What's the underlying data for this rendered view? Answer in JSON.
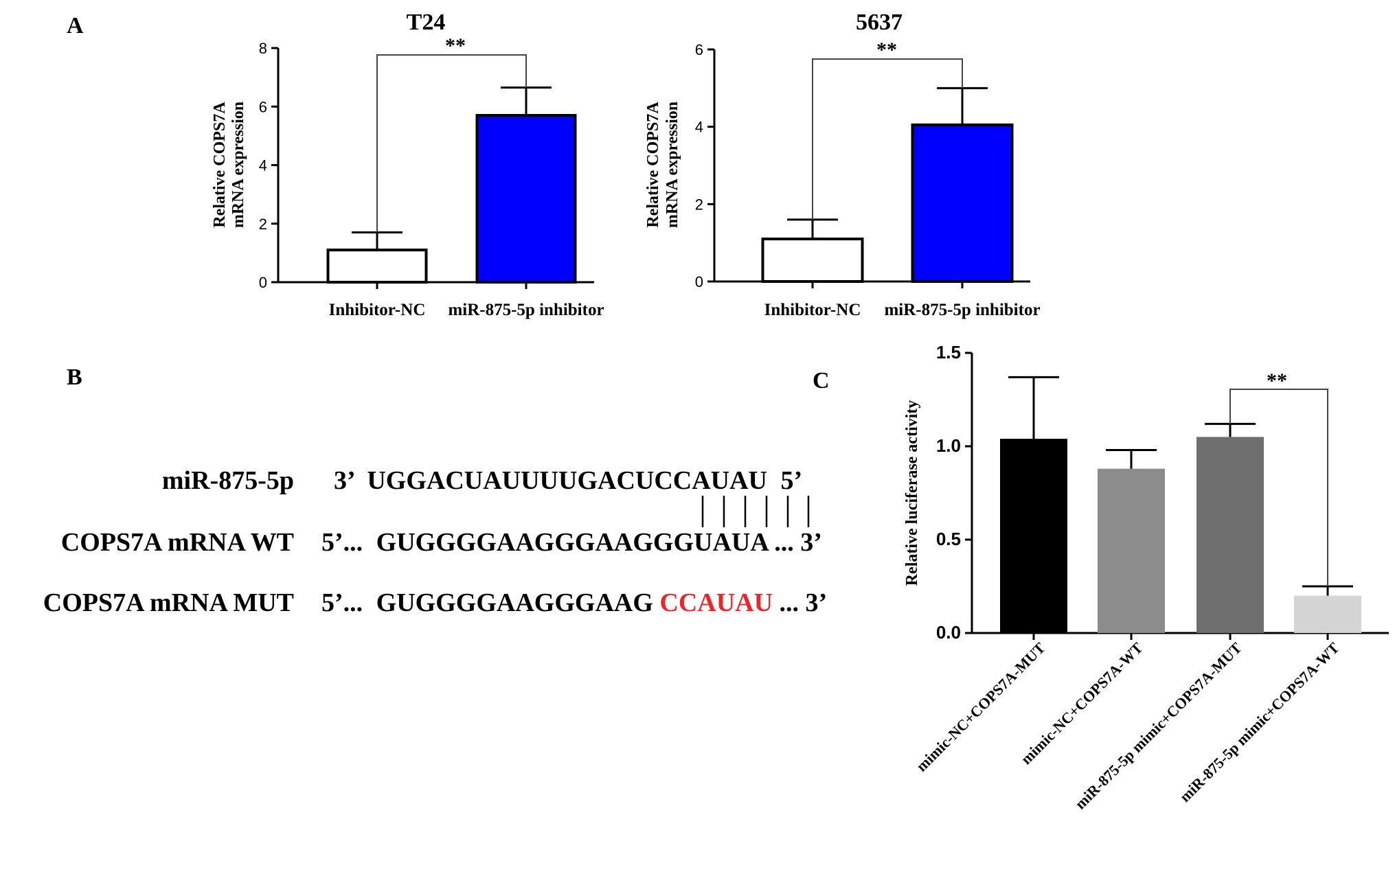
{
  "figure": {
    "panel_letters": [
      "A",
      "B",
      "C"
    ]
  },
  "chart_data": [
    {
      "id": "A1",
      "type": "bar",
      "title": "T24",
      "ylabel_line1": "Relative COPS7A",
      "ylabel_line2": "mRNA expression",
      "categories": [
        "Inhibitor-NC",
        "miR-875-5p inhibitor"
      ],
      "values": [
        1.1,
        5.7
      ],
      "errors": [
        0.6,
        0.95
      ],
      "ylim": [
        0,
        8
      ],
      "yticks": [
        0,
        2,
        4,
        6,
        8
      ],
      "bar_colors": [
        "#ffffff",
        "#0000ff"
      ],
      "significance": "**"
    },
    {
      "id": "A2",
      "type": "bar",
      "title": "5637",
      "ylabel_line1": "Relative COPS7A",
      "ylabel_line2": "mRNA expression",
      "categories": [
        "Inhibitor-NC",
        "miR-875-5p inhibitor"
      ],
      "values": [
        1.1,
        4.05
      ],
      "errors": [
        0.5,
        0.95
      ],
      "ylim": [
        0,
        6
      ],
      "yticks": [
        0,
        2,
        4,
        6
      ],
      "bar_colors": [
        "#ffffff",
        "#0000ff"
      ],
      "significance": "**"
    },
    {
      "id": "C",
      "type": "bar",
      "title": "",
      "ylabel_line1": "Relative luciferase activity",
      "ylabel_line2": "",
      "categories": [
        "mimic-NC+COPS7A-MUT",
        "mimic-NC+COPS7A-WT",
        "miR-875-5p mimic+COPS7A-MUT",
        "miR-875-5p mimic+COPS7A-WT"
      ],
      "values": [
        1.04,
        0.88,
        1.05,
        0.2
      ],
      "errors": [
        0.33,
        0.1,
        0.07,
        0.05
      ],
      "ylim": [
        0,
        1.5
      ],
      "yticks": [
        0.0,
        0.5,
        1.0,
        1.5
      ],
      "ytick_labels": [
        "0.0",
        "0.5",
        "1.0",
        "1.5"
      ],
      "bar_colors": [
        "#000000",
        "#8c8c8c",
        "#6e6e6e",
        "#d4d4d4"
      ],
      "significance": "**"
    }
  ],
  "sequences": {
    "mir": {
      "label": "miR-875-5p",
      "left": "3’",
      "seq": "UGGACUAUUUUGACUCCAUAU",
      "right": "5’"
    },
    "wt": {
      "label": "COPS7A mRNA WT",
      "left": "5’...",
      "seq": "GUGGGGAAGGGAAGGGUAUA",
      "right": "... 3’"
    },
    "mut": {
      "label": "COPS7A mRNA MUT",
      "left": "5’...",
      "seq_black": "GUGGGGAAGGGAAG",
      "seq_red": "CCAUAU",
      "right": "... 3’"
    },
    "mut_color": "#e8262b"
  }
}
